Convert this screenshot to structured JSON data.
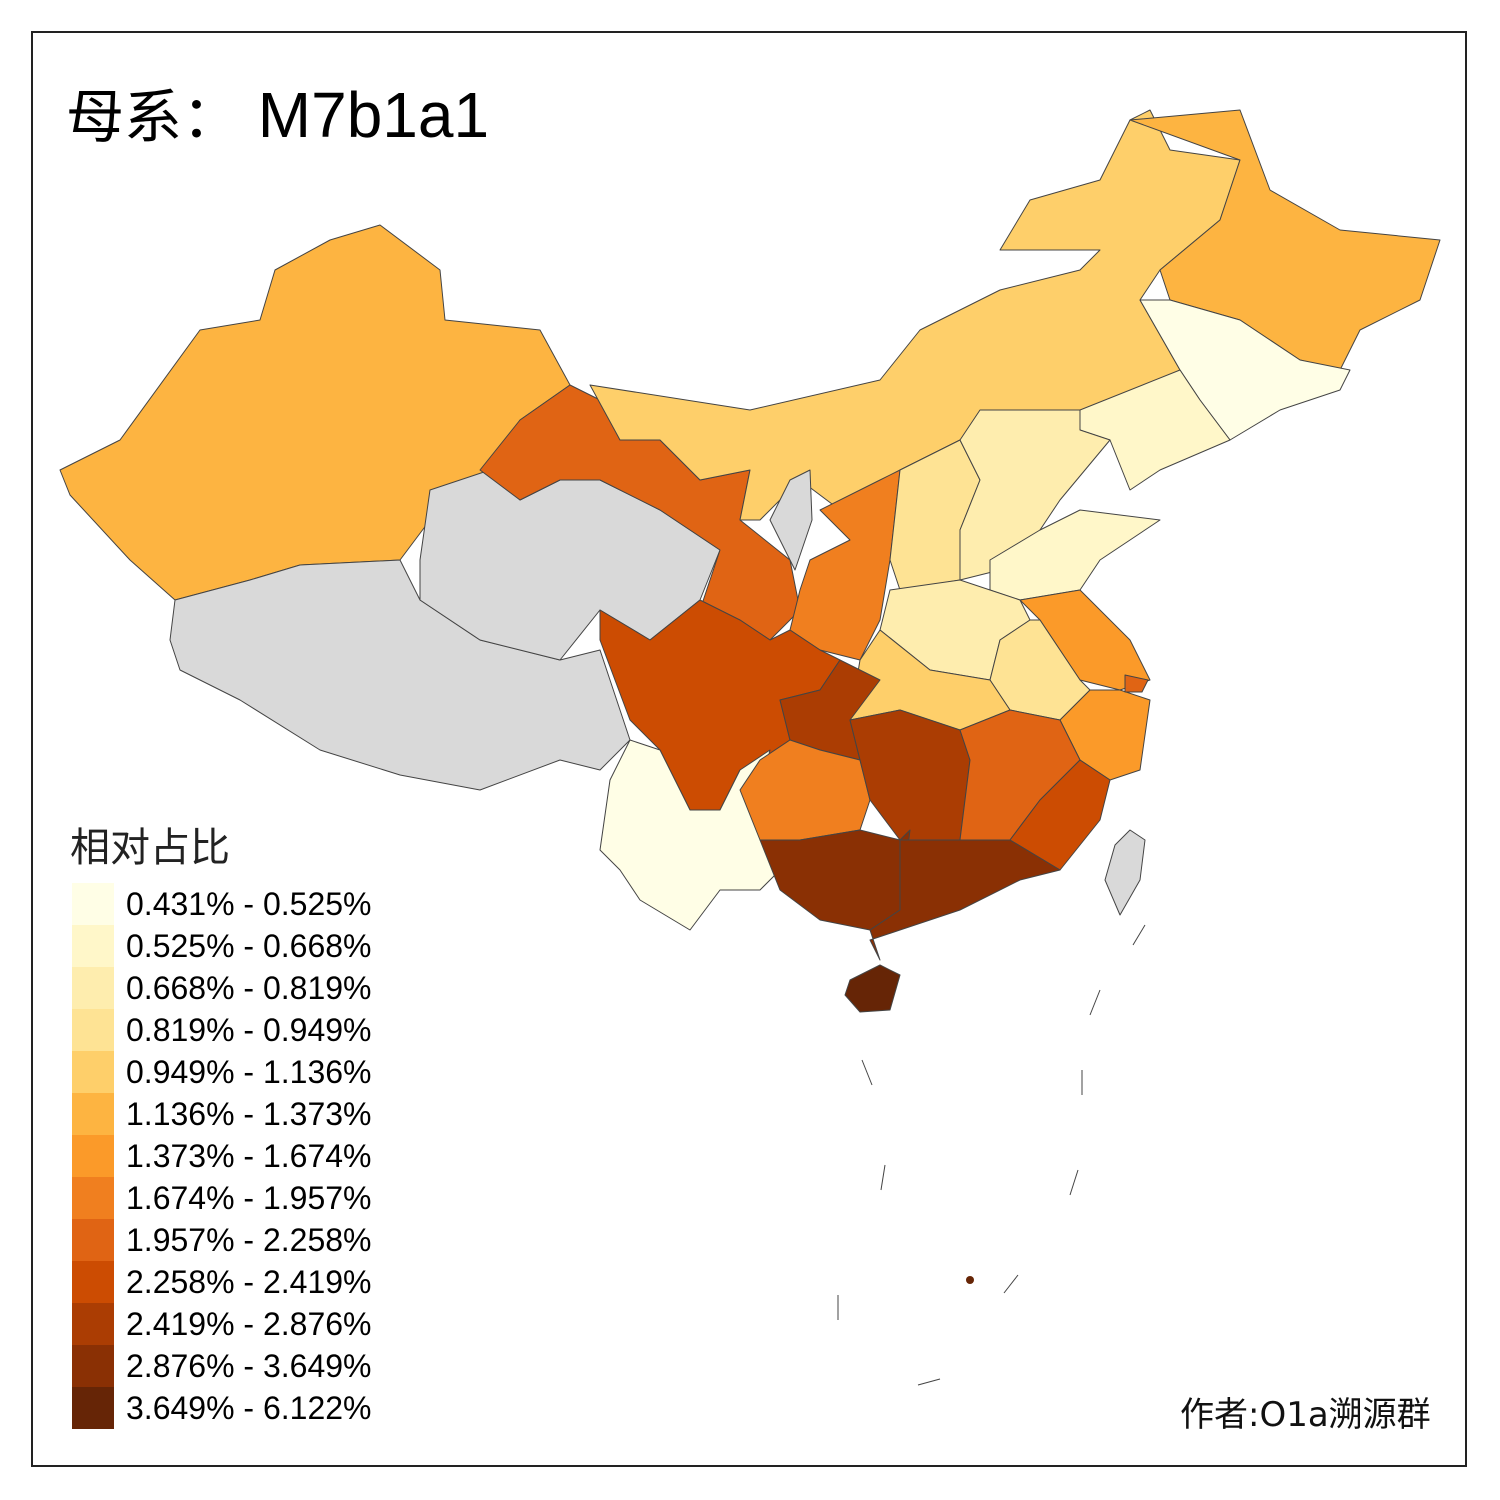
{
  "title": {
    "prefix": "母系：",
    "haplogroup": "M7b1a1"
  },
  "legend": {
    "title": "相对占比",
    "items": [
      {
        "label": "0.431% - 0.525%",
        "color": "#FFFEE6"
      },
      {
        "label": "0.525% - 0.668%",
        "color": "#FFF7C9"
      },
      {
        "label": "0.668% - 0.819%",
        "color": "#FEEDAE"
      },
      {
        "label": "0.819% - 0.949%",
        "color": "#FEE394"
      },
      {
        "label": "0.949% - 1.136%",
        "color": "#FECF6A"
      },
      {
        "label": "1.136% - 1.373%",
        "color": "#FDB441"
      },
      {
        "label": "1.373% - 1.674%",
        "color": "#FB9A29"
      },
      {
        "label": "1.674% - 1.957%",
        "color": "#F07F1F"
      },
      {
        "label": "1.957% - 2.258%",
        "color": "#E06414"
      },
      {
        "label": "2.258% - 2.419%",
        "color": "#CC4C02"
      },
      {
        "label": "2.419% - 2.876%",
        "color": "#AB3D03"
      },
      {
        "label": "2.876% - 3.649%",
        "color": "#8A3004"
      },
      {
        "label": "3.649% - 6.122%",
        "color": "#662506"
      }
    ]
  },
  "no_data_color": "#D9D9D9",
  "region_classes": {
    "xinjiang": 5,
    "tibet": null,
    "qinghai": null,
    "gansu": 8,
    "inner-mongolia": 4,
    "heilongjiang": 5,
    "jilin": 0,
    "liaoning": 1,
    "ningxia": null,
    "shaanxi": 7,
    "shanxi": 3,
    "hebei": 2,
    "shandong": 1,
    "henan": 2,
    "jiangsu": 6,
    "anhui": 3,
    "hubei": 4,
    "chongqing": 10,
    "zhejiang": 6,
    "shanghai": 8,
    "sichuan": 9,
    "yunnan": 0,
    "guizhou": 7,
    "hunan": 10,
    "jiangxi": 8,
    "fujian": 9,
    "guangxi": 11,
    "guangdong": 11,
    "hainan": 12,
    "taiwan": null
  },
  "credit": "作者:O1a溯源群"
}
